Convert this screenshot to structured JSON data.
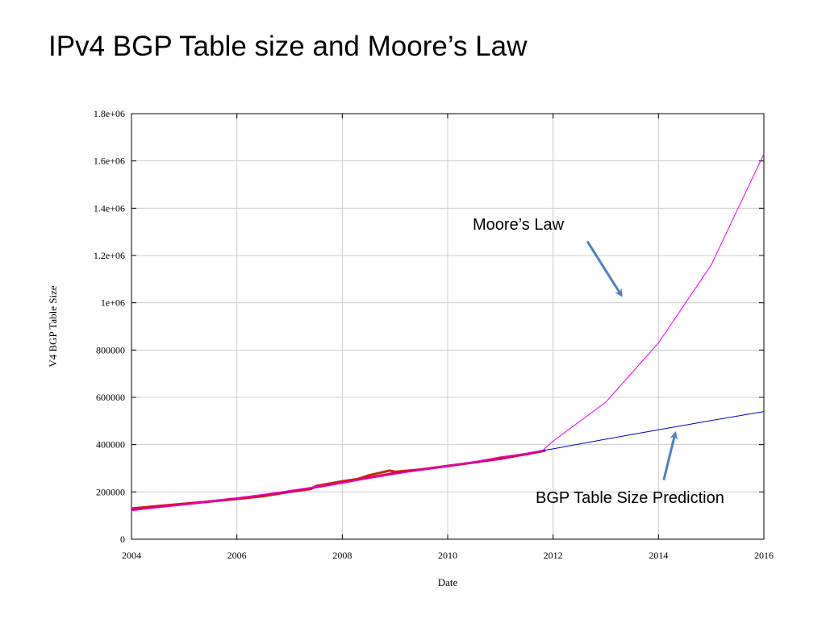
{
  "slide": {
    "title": "IPv4 BGP Table size and Moore’s Law"
  },
  "chart_data": {
    "type": "line",
    "title": "",
    "xlabel": "Date",
    "ylabel": "V4 BGP Table Size",
    "xlim": [
      2004,
      2016
    ],
    "ylim": [
      0,
      1800000
    ],
    "grid": true,
    "x_ticks": [
      2004,
      2006,
      2008,
      2010,
      2012,
      2014,
      2016
    ],
    "x_tick_labels": [
      "2004",
      "2006",
      "2008",
      "2010",
      "2012",
      "2014",
      "2016"
    ],
    "y_ticks": [
      0,
      200000,
      400000,
      600000,
      800000,
      1000000,
      1200000,
      1400000,
      1600000,
      1800000
    ],
    "y_tick_labels": [
      "0",
      "200000",
      "400000",
      "600000",
      "800000",
      "1e+06",
      "1.2e+06",
      "1.4e+06",
      "1.6e+06",
      "1.8e+06"
    ],
    "series": [
      {
        "color": "#c03000",
        "x": [
          2004.0,
          2004.5,
          2005.0,
          2005.5,
          2006.0,
          2006.5,
          2007.0,
          2007.4,
          2007.5,
          2008.0,
          2008.3,
          2008.5,
          2008.9,
          2009.0,
          2009.5,
          2010.0,
          2010.5,
          2011.0,
          2011.5,
          2011.85
        ],
        "y": [
          130000,
          140000,
          150000,
          160000,
          170000,
          182000,
          200000,
          212000,
          225000,
          245000,
          255000,
          270000,
          290000,
          285000,
          295000,
          310000,
          325000,
          345000,
          360000,
          375000
        ]
      },
      {
        "color": "#dd0066",
        "x": [
          2004.0,
          2005.0,
          2006.0,
          2007.0,
          2008.0,
          2009.0,
          2010.0,
          2011.0,
          2011.85
        ],
        "y": [
          125000,
          148000,
          172000,
          200000,
          240000,
          280000,
          310000,
          340000,
          375000
        ]
      },
      {
        "name": "Moore’s Law",
        "color": "#e800e8",
        "x": [
          2004.0,
          2006.0,
          2008.0,
          2010.0,
          2011.8,
          2012.0,
          2013.0,
          2014.0,
          2015.0,
          2016.0
        ],
        "y": [
          120000,
          173000,
          239000,
          310000,
          375000,
          415000,
          580000,
          830000,
          1160000,
          1630000
        ]
      },
      {
        "name": "BGP Table Size Prediction",
        "color": "#0000cc",
        "x": [
          2011.8,
          2012.0,
          2013.0,
          2014.0,
          2015.0,
          2016.0
        ],
        "y": [
          375000,
          382000,
          423000,
          463000,
          502000,
          540000
        ]
      }
    ],
    "annotations": [
      {
        "text": "Moore’s Law",
        "arrow_from": [
          2012.65,
          1260000
        ],
        "arrow_to": [
          2013.3,
          1030000
        ]
      },
      {
        "text": "BGP Table Size Prediction",
        "arrow_from": [
          2014.1,
          250000
        ],
        "arrow_to": [
          2014.32,
          450000
        ]
      }
    ],
    "arrow_color": "#4f81bd"
  }
}
